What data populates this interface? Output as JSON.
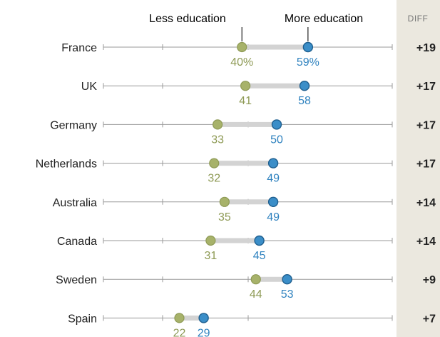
{
  "chart_data": {
    "type": "dot-range",
    "diff_header": "DIFF",
    "legend": {
      "less": "Less education",
      "more": "More education"
    },
    "colors": {
      "less": "#a7b26a",
      "more": "#3b8ec8",
      "less_text": "#8e9a55",
      "more_text": "#2f82bf"
    },
    "categories": [
      "France",
      "UK",
      "Germany",
      "Netherlands",
      "Australia",
      "Canada",
      "Sweden",
      "Spain"
    ],
    "series": [
      {
        "name": "Less education",
        "values": [
          40,
          41,
          33,
          32,
          35,
          31,
          44,
          22
        ]
      },
      {
        "name": "More education",
        "values": [
          59,
          58,
          50,
          49,
          49,
          45,
          53,
          29
        ]
      }
    ],
    "diff": [
      "+19",
      "+17",
      "+17",
      "+17",
      "+14",
      "+14",
      "+9",
      "+7"
    ],
    "value_labels": {
      "less": [
        "40%",
        "41",
        "33",
        "32",
        "35",
        "31",
        "44",
        "22"
      ],
      "more": [
        "59%",
        "58",
        "50",
        "49",
        "49",
        "45",
        "53",
        "29"
      ]
    }
  }
}
